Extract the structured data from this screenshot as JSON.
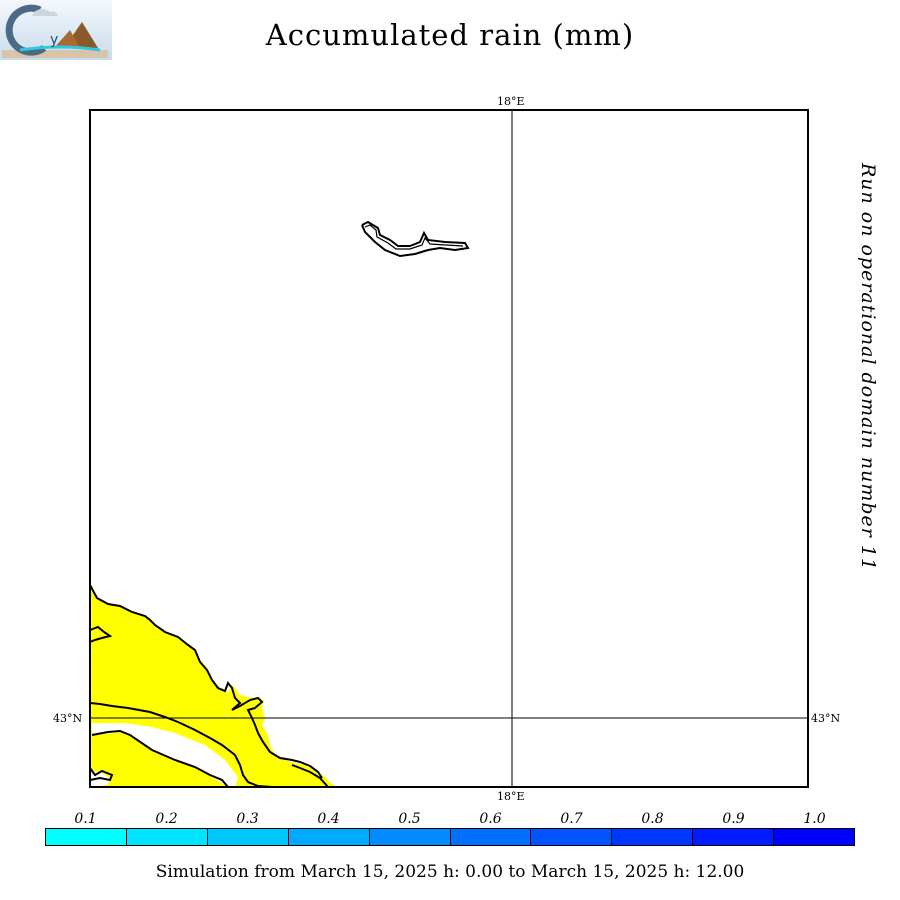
{
  "title": "Accumulated rain (mm)",
  "logo_text": "CHyM",
  "side_text": "Run on operational domain number 11",
  "grid_labels": {
    "lon_top": "18°E",
    "lon_bottom": "18°E",
    "lat_left": "43°N",
    "lat_right": "43°N"
  },
  "colorbar": {
    "labels": [
      "0.1",
      "0.2",
      "0.3",
      "0.4",
      "0.5",
      "0.6",
      "0.7",
      "0.8",
      "0.9",
      "1.0"
    ],
    "colors": [
      "#00ffff",
      "#00e4ff",
      "#00c8ff",
      "#00aaff",
      "#008cff",
      "#0070ff",
      "#0055ff",
      "#0038ff",
      "#001cff",
      "#0000ff"
    ]
  },
  "land_color": "#ffff00",
  "simulation_text": "Simulation from March 15, 2025 h: 0.00 to March 15, 2025 h: 12.00"
}
